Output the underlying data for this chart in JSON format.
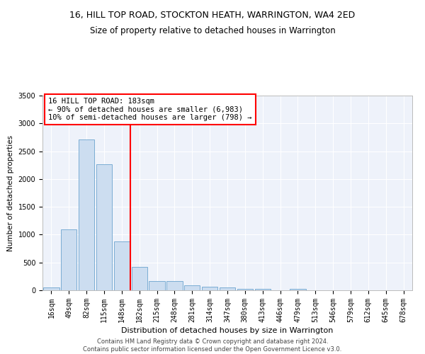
{
  "title": "16, HILL TOP ROAD, STOCKTON HEATH, WARRINGTON, WA4 2ED",
  "subtitle": "Size of property relative to detached houses in Warrington",
  "xlabel": "Distribution of detached houses by size in Warrington",
  "ylabel": "Number of detached properties",
  "bar_color": "#ccddf0",
  "bar_edge_color": "#7aadd4",
  "background_color": "#eef2fa",
  "grid_color": "#ffffff",
  "categories": [
    "16sqm",
    "49sqm",
    "82sqm",
    "115sqm",
    "148sqm",
    "182sqm",
    "215sqm",
    "248sqm",
    "281sqm",
    "314sqm",
    "347sqm",
    "380sqm",
    "413sqm",
    "446sqm",
    "479sqm",
    "513sqm",
    "546sqm",
    "579sqm",
    "612sqm",
    "645sqm",
    "678sqm"
  ],
  "values": [
    55,
    1090,
    2710,
    2270,
    880,
    420,
    165,
    160,
    90,
    60,
    55,
    30,
    30,
    0,
    25,
    0,
    0,
    0,
    0,
    0,
    0
  ],
  "ylim": [
    0,
    3500
  ],
  "yticks": [
    0,
    500,
    1000,
    1500,
    2000,
    2500,
    3000,
    3500
  ],
  "property_line_idx": 5,
  "annotation_line1": "16 HILL TOP ROAD: 183sqm",
  "annotation_line2": "← 90% of detached houses are smaller (6,983)",
  "annotation_line3": "10% of semi-detached houses are larger (798) →",
  "annotation_fontsize": 7.5,
  "title_fontsize": 9,
  "subtitle_fontsize": 8.5,
  "xlabel_fontsize": 8,
  "ylabel_fontsize": 7.5,
  "tick_fontsize": 7,
  "footer_line1": "Contains HM Land Registry data © Crown copyright and database right 2024.",
  "footer_line2": "Contains public sector information licensed under the Open Government Licence v3.0.",
  "footer_fontsize": 6
}
